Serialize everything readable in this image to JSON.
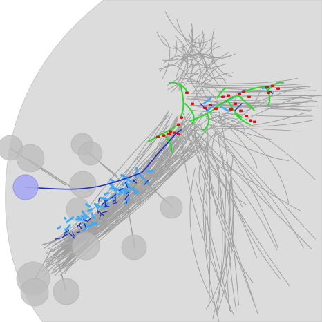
{
  "viewer": {
    "background_color": "#ffffff",
    "brain_shell_color": "#dcdcdc",
    "soma_color": "#bdbdbd",
    "highlight_soma_color": "#a9a9f5",
    "neurite_color": "#9a9a9a",
    "axon_color": "#1f2fbf",
    "dendrite_color": "#3fa9f5",
    "branch_color": "#22dd22",
    "synapse_color": "#dd1111"
  }
}
